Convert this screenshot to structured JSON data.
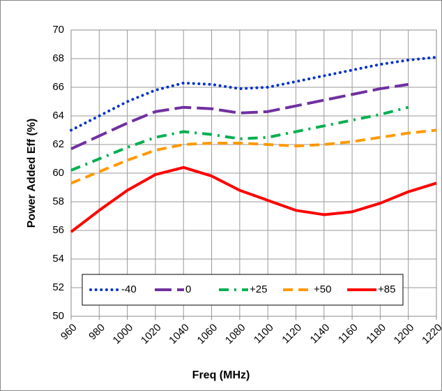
{
  "chart_data": {
    "type": "line",
    "xlabel": "Freq (MHz)",
    "ylabel": "Power Added Eff (%)",
    "x": [
      960,
      980,
      1000,
      1020,
      1040,
      1060,
      1080,
      1100,
      1120,
      1140,
      1160,
      1180,
      1200,
      1220
    ],
    "xlim": [
      960,
      1220
    ],
    "xticks": [
      960,
      980,
      1000,
      1020,
      1040,
      1060,
      1080,
      1100,
      1120,
      1140,
      1160,
      1180,
      1200,
      1220
    ],
    "ylim": [
      50,
      70
    ],
    "yticks": [
      50,
      52,
      54,
      56,
      58,
      60,
      62,
      64,
      66,
      68,
      70
    ],
    "grid": true,
    "legend": "bottom",
    "series": [
      {
        "name": "-40",
        "color": "#0033cc",
        "values": [
          63.0,
          64.0,
          65.0,
          65.8,
          66.3,
          66.2,
          65.9,
          66.0,
          66.4,
          66.8,
          67.2,
          67.6,
          67.9,
          68.1
        ]
      },
      {
        "name": "0",
        "color": "#7030a0",
        "values": [
          61.7,
          62.6,
          63.5,
          64.3,
          64.6,
          64.5,
          64.2,
          64.3,
          64.7,
          65.1,
          65.5,
          65.9,
          66.2,
          null
        ]
      },
      {
        "name": "+25",
        "color": "#00b050",
        "values": [
          60.2,
          61.0,
          61.8,
          62.5,
          62.9,
          62.7,
          62.4,
          62.5,
          62.9,
          63.3,
          63.7,
          64.1,
          64.6,
          null
        ]
      },
      {
        "name": "+50",
        "color": "#ff9900",
        "values": [
          59.3,
          60.1,
          60.9,
          61.6,
          62.0,
          62.1,
          62.1,
          62.0,
          61.9,
          62.0,
          62.2,
          62.5,
          62.8,
          63.0
        ]
      },
      {
        "name": "+85",
        "color": "#ff0000",
        "values": [
          55.9,
          57.4,
          58.8,
          59.9,
          60.4,
          59.8,
          58.8,
          58.1,
          57.4,
          57.1,
          57.3,
          57.9,
          58.7,
          59.3
        ]
      }
    ]
  }
}
